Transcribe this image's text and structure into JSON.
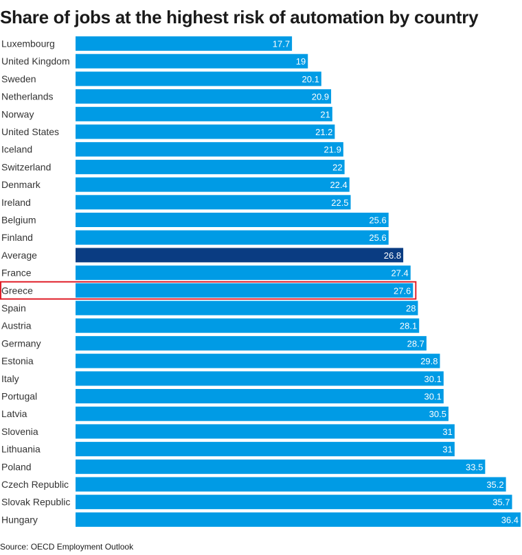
{
  "chart_data": {
    "type": "bar",
    "orientation": "horizontal",
    "title": "Share of jobs at the highest risk of automation by country",
    "categories": [
      "Luxembourg",
      "United Kingdom",
      "Sweden",
      "Netherlands",
      "Norway",
      "United States",
      "Iceland",
      "Switzerland",
      "Denmark",
      "Ireland",
      "Belgium",
      "Finland",
      "Average",
      "France",
      "Greece",
      "Spain",
      "Austria",
      "Germany",
      "Estonia",
      "Italy",
      "Portugal",
      "Latvia",
      "Slovenia",
      "Lithuania",
      "Poland",
      "Czech Republic",
      "Slovak Republic",
      "Hungary"
    ],
    "values": [
      17.7,
      19,
      20.1,
      20.9,
      21,
      21.2,
      21.9,
      22,
      22.4,
      22.5,
      25.6,
      25.6,
      26.8,
      27.4,
      27.6,
      28,
      28.1,
      28.7,
      29.8,
      30.1,
      30.1,
      30.5,
      31,
      31,
      33.5,
      35.2,
      35.7,
      36.4
    ],
    "xlim": [
      0,
      36.4
    ],
    "grid": false,
    "legend": "none",
    "highlighted_category": "Average",
    "outlined_category": "Greece",
    "colors": {
      "bar": "#009BE5",
      "highlight": "#0A3C82",
      "outline": "#E0202A",
      "value_label": "#ffffff",
      "category_label": "#333333"
    }
  },
  "source": "Source: OECD Employment Outlook"
}
